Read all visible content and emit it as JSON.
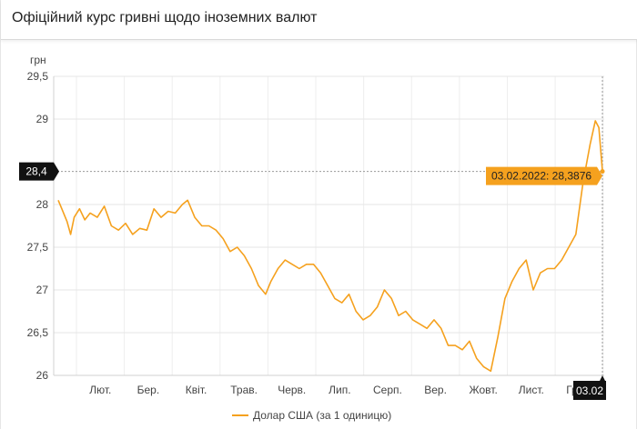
{
  "header": {
    "title": "Офіційний курс гривні щодо іноземних валют"
  },
  "chart_data": {
    "type": "line",
    "title": "Офіційний курс гривні щодо іноземних валют",
    "ylabel": "грн",
    "ylim": [
      26,
      29.5
    ],
    "y_ticks": [
      {
        "value": 26,
        "label": "26"
      },
      {
        "value": 26.5,
        "label": "26,5"
      },
      {
        "value": 27,
        "label": "27"
      },
      {
        "value": 27.5,
        "label": "27,5"
      },
      {
        "value": 28,
        "label": "28"
      },
      {
        "value": 29,
        "label": "29"
      },
      {
        "value": 29.5,
        "label": "29,5"
      }
    ],
    "x_ticks": [
      "Лют.",
      "Бер.",
      "Квіт.",
      "Трав.",
      "Черв.",
      "Лип.",
      "Серп.",
      "Вер.",
      "Жовт.",
      "Лист.",
      "Груд."
    ],
    "crosshair": {
      "y_label": "28,4",
      "x_label": "03.02",
      "value": 28.3876
    },
    "tooltip": "03.02.2022: 28,3876",
    "legend": {
      "label": "Долар США (за 1 одиницю)",
      "position": "bottom"
    },
    "grid": true,
    "series": [
      {
        "name": "Долар США (за 1 одиницю)",
        "color": "#f5a11e",
        "points": [
          [
            0.0,
            28.05
          ],
          [
            0.2,
            27.95
          ],
          [
            0.5,
            27.8
          ],
          [
            0.7,
            27.65
          ],
          [
            0.9,
            27.85
          ],
          [
            1.2,
            27.95
          ],
          [
            1.5,
            27.82
          ],
          [
            1.8,
            27.9
          ],
          [
            2.2,
            27.85
          ],
          [
            2.6,
            27.98
          ],
          [
            3.0,
            27.75
          ],
          [
            3.4,
            27.7
          ],
          [
            3.8,
            27.78
          ],
          [
            4.2,
            27.65
          ],
          [
            4.6,
            27.72
          ],
          [
            5.0,
            27.7
          ],
          [
            5.4,
            27.95
          ],
          [
            5.8,
            27.85
          ],
          [
            6.2,
            27.92
          ],
          [
            6.6,
            27.9
          ],
          [
            7.0,
            28.0
          ],
          [
            7.3,
            28.05
          ],
          [
            7.7,
            27.85
          ],
          [
            8.1,
            27.75
          ],
          [
            8.5,
            27.75
          ],
          [
            8.9,
            27.7
          ],
          [
            9.3,
            27.6
          ],
          [
            9.7,
            27.45
          ],
          [
            10.1,
            27.5
          ],
          [
            10.5,
            27.4
          ],
          [
            10.9,
            27.25
          ],
          [
            11.3,
            27.05
          ],
          [
            11.7,
            26.95
          ],
          [
            12.0,
            27.1
          ],
          [
            12.4,
            27.25
          ],
          [
            12.8,
            27.35
          ],
          [
            13.2,
            27.3
          ],
          [
            13.6,
            27.25
          ],
          [
            14.0,
            27.3
          ],
          [
            14.4,
            27.3
          ],
          [
            14.8,
            27.2
          ],
          [
            15.2,
            27.05
          ],
          [
            15.6,
            26.9
          ],
          [
            16.0,
            26.85
          ],
          [
            16.4,
            26.95
          ],
          [
            16.8,
            26.75
          ],
          [
            17.2,
            26.65
          ],
          [
            17.6,
            26.7
          ],
          [
            18.0,
            26.8
          ],
          [
            18.4,
            27.0
          ],
          [
            18.8,
            26.9
          ],
          [
            19.2,
            26.7
          ],
          [
            19.6,
            26.75
          ],
          [
            20.0,
            26.65
          ],
          [
            20.4,
            26.6
          ],
          [
            20.8,
            26.55
          ],
          [
            21.2,
            26.65
          ],
          [
            21.6,
            26.55
          ],
          [
            22.0,
            26.35
          ],
          [
            22.4,
            26.35
          ],
          [
            22.8,
            26.3
          ],
          [
            23.2,
            26.4
          ],
          [
            23.6,
            26.2
          ],
          [
            24.0,
            26.1
          ],
          [
            24.4,
            26.05
          ],
          [
            24.8,
            26.45
          ],
          [
            25.2,
            26.9
          ],
          [
            25.6,
            27.1
          ],
          [
            26.0,
            27.25
          ],
          [
            26.4,
            27.35
          ],
          [
            26.8,
            27.0
          ],
          [
            27.2,
            27.2
          ],
          [
            27.6,
            27.25
          ],
          [
            28.0,
            27.25
          ],
          [
            28.4,
            27.35
          ],
          [
            28.8,
            27.5
          ],
          [
            29.2,
            27.65
          ],
          [
            29.6,
            28.25
          ],
          [
            30.0,
            28.7
          ],
          [
            30.3,
            28.98
          ],
          [
            30.5,
            28.9
          ],
          [
            30.7,
            28.39
          ]
        ]
      }
    ]
  }
}
